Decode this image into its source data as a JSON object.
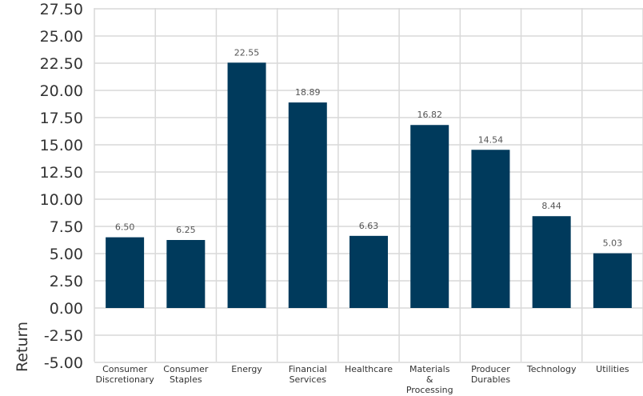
{
  "chart_data": {
    "type": "bar",
    "categories": [
      [
        "Consumer",
        "Discretionary"
      ],
      [
        "Consumer",
        "Staples"
      ],
      [
        "Energy"
      ],
      [
        "Financial",
        "Services"
      ],
      [
        "Healthcare"
      ],
      [
        "Materials",
        "&",
        "Processing"
      ],
      [
        "Producer",
        "Durables"
      ],
      [
        "Technology"
      ],
      [
        "Utilities"
      ]
    ],
    "values": [
      6.5,
      6.25,
      22.55,
      18.89,
      6.63,
      16.82,
      14.54,
      8.44,
      5.03
    ],
    "data_labels": [
      "6.50",
      "6.25",
      "22.55",
      "18.89",
      "6.63",
      "16.82",
      "14.54",
      "8.44",
      "5.03"
    ],
    "ylabel": "Return",
    "ylim": [
      -5.0,
      27.5
    ],
    "yticks": [
      "27.50",
      "25.00",
      "22.50",
      "20.00",
      "17.50",
      "15.00",
      "12.50",
      "10.00",
      "7.50",
      "5.00",
      "2.50",
      "0.00",
      "-2.50",
      "-5.00"
    ],
    "ytick_values": [
      27.5,
      25,
      22.5,
      20,
      17.5,
      15,
      12.5,
      10,
      7.5,
      5,
      2.5,
      0,
      -2.5,
      -5
    ],
    "bar_color": "#003a5c",
    "grid": true
  }
}
